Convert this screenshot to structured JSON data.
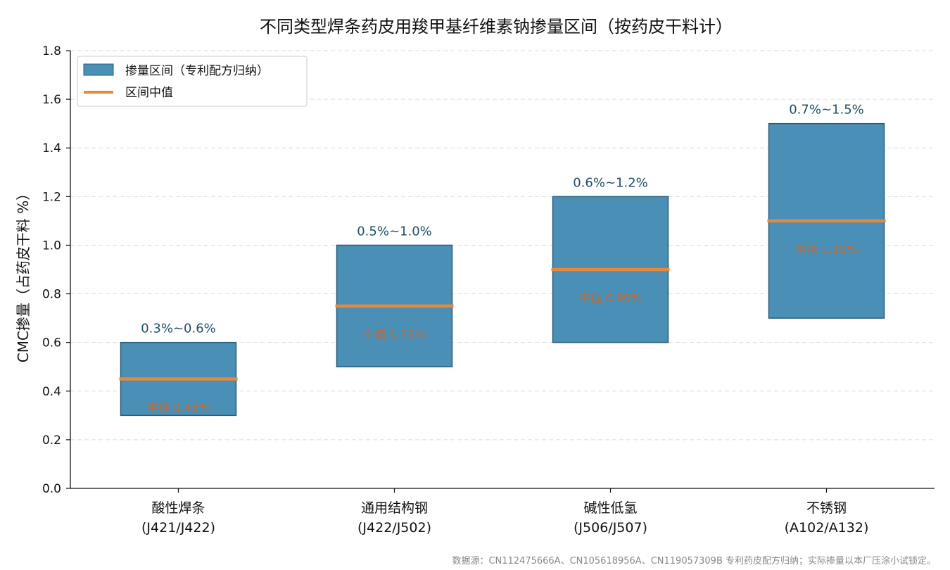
{
  "chart_data": {
    "type": "bar",
    "subtype": "floating-range-bar",
    "title": "不同类型焊条药皮用羧甲基纤维素钠掺量区间（按药皮干料计）",
    "xlabel": "",
    "ylabel": "CMC掺量（占药皮干料 %）",
    "ylim": [
      0,
      1.8
    ],
    "yticks": [
      "0.0",
      "0.2",
      "0.4",
      "0.6",
      "0.8",
      "1.0",
      "1.2",
      "1.4",
      "1.6",
      "1.8"
    ],
    "grid": "horizontal-dashed",
    "legend_position": "top-left",
    "legend": {
      "range_label": "掺量区间（专利配方归纳）",
      "median_label": "区间中值"
    },
    "categories": [
      {
        "name": "酸性焊条",
        "grades": "(J421/J422)",
        "low": 0.3,
        "high": 0.6,
        "mid": 0.45,
        "range_text": "0.3%~0.6%",
        "mid_text": "中值 0.45%"
      },
      {
        "name": "通用结构钢",
        "grades": "(J422/J502)",
        "low": 0.5,
        "high": 1.0,
        "mid": 0.75,
        "range_text": "0.5%~1.0%",
        "mid_text": "中值 0.75%"
      },
      {
        "name": "碱性低氢",
        "grades": "(J506/J507)",
        "low": 0.6,
        "high": 1.2,
        "mid": 0.9,
        "range_text": "0.6%~1.2%",
        "mid_text": "中值 0.90%"
      },
      {
        "name": "不锈钢",
        "grades": "(A102/A132)",
        "low": 0.7,
        "high": 1.5,
        "mid": 1.1,
        "range_text": "0.7%~1.5%",
        "mid_text": "中值 1.10%"
      }
    ],
    "colors": {
      "bar": "#4a8fb5",
      "bar_edge": "#2a5d7a",
      "median": "#e8883a"
    },
    "footnote": "数据源：CN112475666A、CN105618956A、CN119057309B 专利药皮配方归纳；实际掺量以本厂压涂小试锁定。"
  }
}
